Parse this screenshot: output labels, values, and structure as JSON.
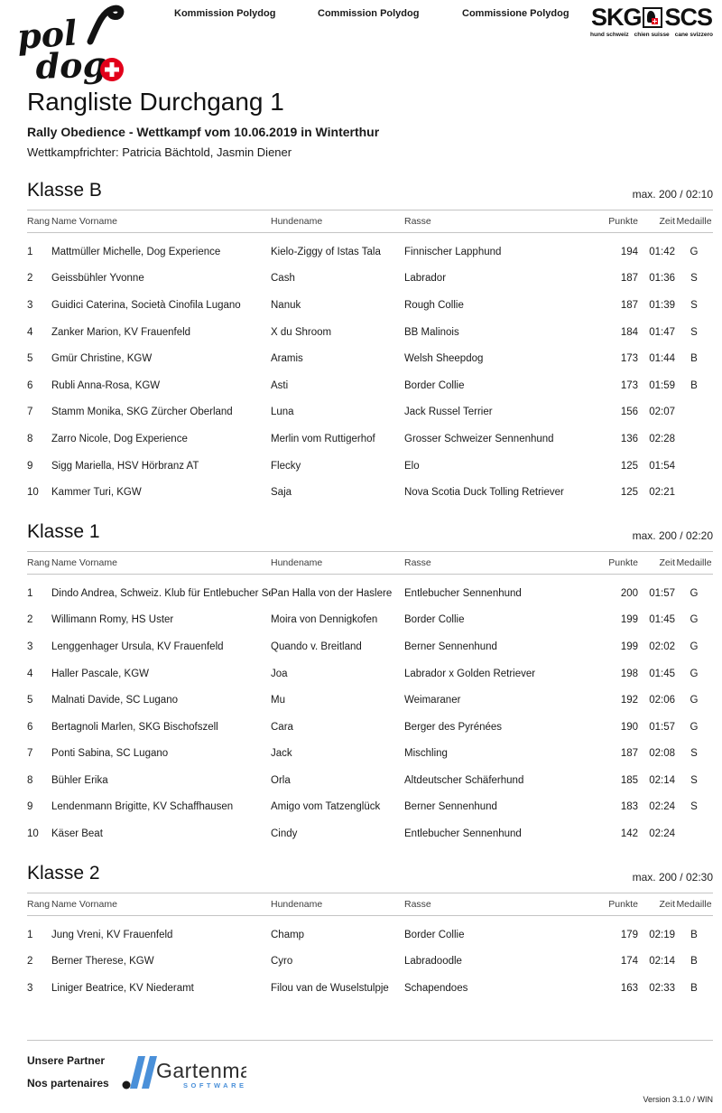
{
  "header": {
    "polydog_logo": {
      "word1": "pol",
      "word2": "dog",
      "cross_color": "#e2001a"
    },
    "committee_labels": [
      "Kommission Polydog",
      "Commission Polydog",
      "Commissione Polydog"
    ],
    "skg_logo": {
      "word_left": "SKG",
      "word_right": "SCS",
      "tagline": [
        "hund schweiz",
        "chien suisse",
        "cane svizzero"
      ]
    }
  },
  "title": "Rangliste Durchgang 1",
  "subtitle": "Rally Obedience - Wettkampf vom 10.06.2019 in Winterthur",
  "judges_line": "Wettkampfrichter: Patricia Bächtold, Jasmin Diener",
  "columns": {
    "rang": "Rang",
    "name": "Name Vorname",
    "hundename": "Hundename",
    "rasse": "Rasse",
    "punkte": "Punkte",
    "zeit": "Zeit",
    "medaille": "Medaille"
  },
  "sections": [
    {
      "title": "Klasse B",
      "max_label": "max. 200  /  02:10",
      "rows": [
        {
          "rang": "1",
          "name": "Mattmüller Michelle, Dog Experience",
          "hundename": "Kielo-Ziggy of Istas Tala",
          "rasse": "Finnischer Lapphund",
          "punkte": "194",
          "zeit": "01:42",
          "medaille": "G"
        },
        {
          "rang": "2",
          "name": "Geissbühler Yvonne",
          "hundename": "Cash",
          "rasse": "Labrador",
          "punkte": "187",
          "zeit": "01:36",
          "medaille": "S"
        },
        {
          "rang": "3",
          "name": "Guidici Caterina, Società Cinofila Lugano",
          "hundename": "Nanuk",
          "rasse": "Rough Collie",
          "punkte": "187",
          "zeit": "01:39",
          "medaille": "S"
        },
        {
          "rang": "4",
          "name": "Zanker Marion, KV Frauenfeld",
          "hundename": "X du Shroom",
          "rasse": "BB Malinois",
          "punkte": "184",
          "zeit": "01:47",
          "medaille": "S"
        },
        {
          "rang": "5",
          "name": "Gmür Christine, KGW",
          "hundename": "Aramis",
          "rasse": "Welsh Sheepdog",
          "punkte": "173",
          "zeit": "01:44",
          "medaille": "B"
        },
        {
          "rang": "6",
          "name": "Rubli Anna-Rosa, KGW",
          "hundename": "Asti",
          "rasse": "Border Collie",
          "punkte": "173",
          "zeit": "01:59",
          "medaille": "B"
        },
        {
          "rang": "7",
          "name": "Stamm Monika, SKG Zürcher Oberland",
          "hundename": "Luna",
          "rasse": "Jack Russel Terrier",
          "punkte": "156",
          "zeit": "02:07",
          "medaille": ""
        },
        {
          "rang": "8",
          "name": "Zarro Nicole, Dog Experience",
          "hundename": "Merlin vom Ruttigerhof",
          "rasse": "Grosser Schweizer Sennenhund",
          "punkte": "136",
          "zeit": "02:28",
          "medaille": ""
        },
        {
          "rang": "9",
          "name": "Sigg Mariella, HSV Hörbranz AT",
          "hundename": "Flecky",
          "rasse": "Elo",
          "punkte": "125",
          "zeit": "01:54",
          "medaille": ""
        },
        {
          "rang": "10",
          "name": "Kammer Turi, KGW",
          "hundename": "Saja",
          "rasse": "Nova Scotia Duck Tolling Retriever",
          "punkte": "125",
          "zeit": "02:21",
          "medaille": ""
        }
      ]
    },
    {
      "title": "Klasse 1",
      "max_label": "max. 200  /  02:20",
      "rows": [
        {
          "rang": "1",
          "name": "Dindo Andrea, Schweiz. Klub für Entlebucher Sennenhunde",
          "hundename": "Pan Halla von der Haslere",
          "rasse": "Entlebucher Sennenhund",
          "punkte": "200",
          "zeit": "01:57",
          "medaille": "G"
        },
        {
          "rang": "2",
          "name": "Willimann Romy, HS Uster",
          "hundename": "Moira von Dennigkofen",
          "rasse": "Border Collie",
          "punkte": "199",
          "zeit": "01:45",
          "medaille": "G"
        },
        {
          "rang": "3",
          "name": "Lenggenhager Ursula, KV Frauenfeld",
          "hundename": "Quando v. Breitland",
          "rasse": "Berner Sennenhund",
          "punkte": "199",
          "zeit": "02:02",
          "medaille": "G"
        },
        {
          "rang": "4",
          "name": "Haller Pascale, KGW",
          "hundename": "Joa",
          "rasse": "Labrador x Golden Retriever",
          "punkte": "198",
          "zeit": "01:45",
          "medaille": "G"
        },
        {
          "rang": "5",
          "name": "Malnati Davide, SC Lugano",
          "hundename": "Mu",
          "rasse": "Weimaraner",
          "punkte": "192",
          "zeit": "02:06",
          "medaille": "G"
        },
        {
          "rang": "6",
          "name": "Bertagnoli Marlen, SKG Bischofszell",
          "hundename": "Cara",
          "rasse": "Berger des Pyrénées",
          "punkte": "190",
          "zeit": "01:57",
          "medaille": "G"
        },
        {
          "rang": "7",
          "name": "Ponti Sabina, SC Lugano",
          "hundename": "Jack",
          "rasse": "Mischling",
          "punkte": "187",
          "zeit": "02:08",
          "medaille": "S"
        },
        {
          "rang": "8",
          "name": "Bühler Erika",
          "hundename": "Orla",
          "rasse": "Altdeutscher Schäferhund",
          "punkte": "185",
          "zeit": "02:14",
          "medaille": "S"
        },
        {
          "rang": "9",
          "name": "Lendenmann Brigitte, KV Schaffhausen",
          "hundename": "Amigo vom Tatzenglück",
          "rasse": "Berner Sennenhund",
          "punkte": "183",
          "zeit": "02:24",
          "medaille": "S"
        },
        {
          "rang": "10",
          "name": "Käser Beat",
          "hundename": "Cindy",
          "rasse": "Entlebucher Sennenhund",
          "punkte": "142",
          "zeit": "02:24",
          "medaille": ""
        }
      ]
    },
    {
      "title": "Klasse 2",
      "max_label": "max. 200  /  02:30",
      "rows": [
        {
          "rang": "1",
          "name": "Jung Vreni, KV Frauenfeld",
          "hundename": "Champ",
          "rasse": "Border Collie",
          "punkte": "179",
          "zeit": "02:19",
          "medaille": "B"
        },
        {
          "rang": "2",
          "name": "Berner Therese, KGW",
          "hundename": "Cyro",
          "rasse": "Labradoodle",
          "punkte": "174",
          "zeit": "02:14",
          "medaille": "B"
        },
        {
          "rang": "3",
          "name": "Liniger Beatrice, KV Niederamt",
          "hundename": "Filou van de Wuselstulpje",
          "rasse": "Schapendoes",
          "punkte": "163",
          "zeit": "02:33",
          "medaille": "B"
        }
      ]
    }
  ],
  "footer": {
    "partners_line1": "Unsere Partner",
    "partners_line2": "Nos partenaires",
    "gartenmann": {
      "name": "Gartenmann",
      "sub": "SOFTWARE",
      "blue": "#4a90d9"
    },
    "version": "Version 3.1.0 / WIN"
  }
}
